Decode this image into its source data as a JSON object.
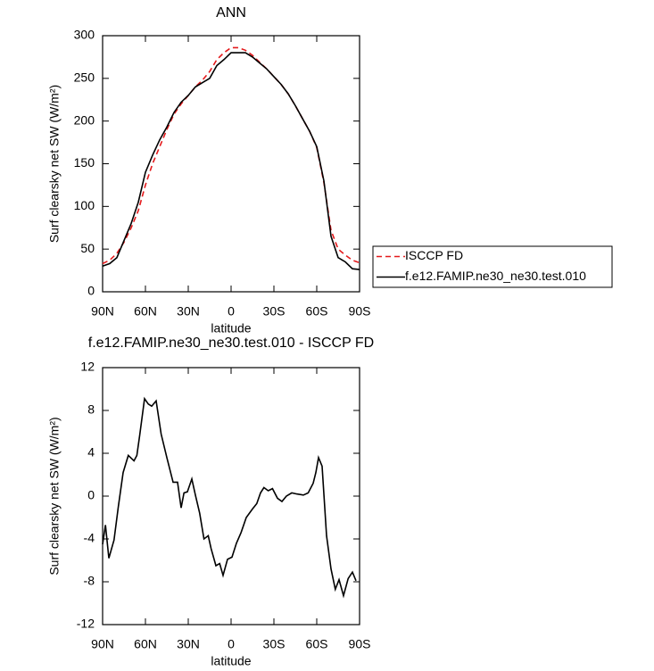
{
  "chart_data": [
    {
      "type": "line",
      "title": "ANN",
      "xlabel": "latitude",
      "ylabel": "Surf clearsky net SW (W/m²)",
      "x": [
        90,
        85,
        80,
        75,
        70,
        65,
        60,
        55,
        50,
        45,
        40,
        35,
        30,
        25,
        20,
        15,
        10,
        5,
        0,
        -5,
        -10,
        -15,
        -20,
        -25,
        -30,
        -35,
        -40,
        -45,
        -50,
        -55,
        -60,
        -65,
        -70,
        -75,
        -80,
        -85,
        -90
      ],
      "series": [
        {
          "name": "ISCCP FD",
          "color": "#e41a1c",
          "dashed": true,
          "values": [
            33,
            37,
            45,
            58,
            75,
            95,
            125,
            150,
            170,
            190,
            208,
            220,
            230,
            240,
            248,
            258,
            272,
            280,
            286,
            286,
            283,
            277,
            269,
            261,
            252,
            243,
            232,
            218,
            203,
            188,
            169,
            128,
            72,
            50,
            43,
            37,
            34
          ]
        },
        {
          "name": "f.e12.FAMIP.ne30_ne30.test.010",
          "color": "#000000",
          "dashed": false,
          "values": [
            30,
            33,
            40,
            60,
            80,
            105,
            140,
            160,
            178,
            193,
            210,
            222,
            230,
            240,
            245,
            250,
            265,
            272,
            280,
            280,
            280,
            275,
            268,
            261,
            252,
            243,
            232,
            218,
            203,
            188,
            170,
            130,
            65,
            40,
            35,
            27,
            26
          ]
        }
      ],
      "xlim": [
        90,
        -90
      ],
      "xticks": [
        {
          "value": 90,
          "label": "90N"
        },
        {
          "value": 60,
          "label": "60N"
        },
        {
          "value": 30,
          "label": "30N"
        },
        0,
        {
          "value": -30,
          "label": "30S"
        },
        {
          "value": -60,
          "label": "60S"
        },
        {
          "value": -90,
          "label": "90S"
        }
      ],
      "ylim": [
        0,
        300
      ],
      "yticks": [
        0,
        50,
        100,
        150,
        200,
        250,
        300
      ],
      "legend": "outside right"
    },
    {
      "type": "line",
      "title": "f.e12.FAMIP.ne30_ne30.test.010 - ISCCP FD",
      "xlabel": "latitude",
      "ylabel": "Surf clearsky net SW (W/m²)",
      "color": "#000000",
      "x": [
        90,
        88,
        85.6,
        82,
        79,
        75.6,
        72,
        68,
        66,
        64,
        60.6,
        58,
        55.6,
        52.5,
        49,
        45,
        40.6,
        37.5,
        35,
        33,
        30.6,
        27.5,
        25,
        22,
        19,
        16,
        14,
        10.6,
        8,
        5.6,
        2.5,
        -0.6,
        -3.75,
        -7,
        -10.6,
        -15,
        -18,
        -20.6,
        -23,
        -26,
        -29,
        -32.5,
        -35.6,
        -38.75,
        -42.5,
        -46,
        -50.6,
        -54,
        -57.5,
        -59.4,
        -61.25,
        -63.75,
        -66.9,
        -70,
        -73,
        -75.6,
        -78.75,
        -82,
        -85,
        -87.5
      ],
      "values": [
        -4.5,
        -2.7,
        -5.8,
        -4.1,
        -1,
        2.2,
        3.8,
        3.3,
        3.8,
        5.7,
        9.1,
        8.6,
        8.4,
        8.9,
        5.8,
        3.6,
        1.3,
        1.3,
        -1.1,
        0.3,
        0.4,
        1.6,
        0.1,
        -1.6,
        -4,
        -3.7,
        -4.9,
        -6.5,
        -6.3,
        -7.4,
        -5.9,
        -5.7,
        -4.4,
        -3.4,
        -2,
        -1.2,
        -0.7,
        0.3,
        0.8,
        0.5,
        0.7,
        -0.2,
        -0.5,
        0,
        0.3,
        0.2,
        0.1,
        0.3,
        1.2,
        2.2,
        3.6,
        2.8,
        -3.7,
        -6.8,
        -8.7,
        -7.8,
        -9.3,
        -7.7,
        -7.1,
        -7.9
      ],
      "xlim": [
        90,
        -90
      ],
      "xticks": [
        {
          "value": 90,
          "label": "90N"
        },
        {
          "value": 60,
          "label": "60N"
        },
        {
          "value": 30,
          "label": "30N"
        },
        0,
        {
          "value": -30,
          "label": "30S"
        },
        {
          "value": -60,
          "label": "60S"
        },
        {
          "value": -90,
          "label": "90S"
        }
      ],
      "ylim": [
        -12,
        12
      ],
      "yticks": [
        -12,
        -8,
        -4,
        0,
        4,
        8,
        12
      ]
    }
  ]
}
